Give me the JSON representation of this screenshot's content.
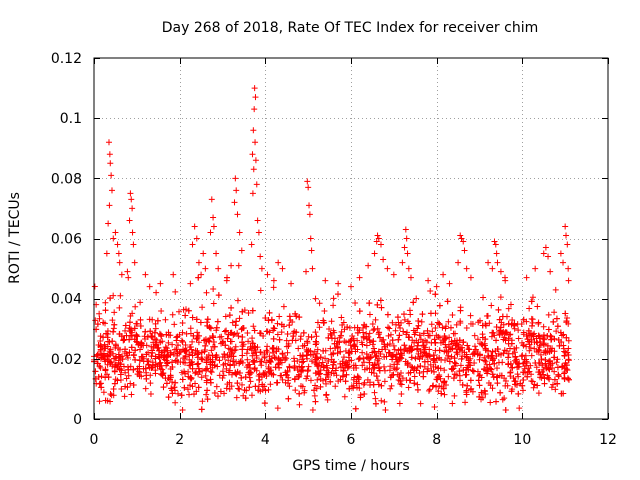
{
  "colors": {
    "marker": "#ff0000",
    "grid": "#a0a0a0",
    "axis": "#000000",
    "background": "#ffffff"
  },
  "chart_data": {
    "type": "scatter",
    "title": "Day 268 of 2018, Rate Of TEC Index for receiver chim",
    "xlabel": "GPS time / hours",
    "ylabel": "ROTI / TECUs",
    "xlim": [
      0,
      12
    ],
    "ylim": [
      0,
      0.12
    ],
    "grid": true,
    "marker": "+",
    "x_ticks": [
      0,
      2,
      4,
      6,
      8,
      10,
      12
    ],
    "y_ticks": [
      0,
      0.02,
      0.04,
      0.06,
      0.08,
      0.1,
      0.12
    ],
    "x_tick_labels": [
      "0",
      "2",
      "4",
      "6",
      "8",
      "10",
      "12"
    ],
    "y_tick_labels": [
      "0",
      "0.02",
      "0.04",
      "0.06",
      "0.08",
      "0.1",
      "0.12"
    ],
    "series": [
      {
        "name": "ROTI",
        "data_range": {
          "x": [
            0,
            11.1
          ],
          "y_min": 0.003,
          "y_max": 0.11
        },
        "bulk": {
          "x_start": 0,
          "x_end": 11.1,
          "y_median": 0.02,
          "y_spread": 0.012
        },
        "spikes": [
          {
            "x": 0.05,
            "y": 0.038
          },
          {
            "x": 0.12,
            "y": 0.035
          },
          {
            "x": 0.35,
            "y": 0.092
          },
          {
            "x": 0.37,
            "y": 0.088
          },
          {
            "x": 0.38,
            "y": 0.085
          },
          {
            "x": 0.4,
            "y": 0.081
          },
          {
            "x": 0.42,
            "y": 0.076
          },
          {
            "x": 0.36,
            "y": 0.071
          },
          {
            "x": 0.33,
            "y": 0.065
          },
          {
            "x": 0.45,
            "y": 0.06
          },
          {
            "x": 0.5,
            "y": 0.062
          },
          {
            "x": 0.55,
            "y": 0.058
          },
          {
            "x": 0.58,
            "y": 0.055
          },
          {
            "x": 0.6,
            "y": 0.052
          },
          {
            "x": 0.3,
            "y": 0.055
          },
          {
            "x": 0.65,
            "y": 0.048
          },
          {
            "x": 0.85,
            "y": 0.075
          },
          {
            "x": 0.87,
            "y": 0.073
          },
          {
            "x": 0.89,
            "y": 0.07
          },
          {
            "x": 0.83,
            "y": 0.066
          },
          {
            "x": 0.9,
            "y": 0.062
          },
          {
            "x": 0.92,
            "y": 0.058
          },
          {
            "x": 0.95,
            "y": 0.052
          },
          {
            "x": 0.8,
            "y": 0.047
          },
          {
            "x": 0.78,
            "y": 0.049
          },
          {
            "x": 1.2,
            "y": 0.048
          },
          {
            "x": 1.3,
            "y": 0.044
          },
          {
            "x": 1.45,
            "y": 0.042
          },
          {
            "x": 1.55,
            "y": 0.045
          },
          {
            "x": 1.85,
            "y": 0.048
          },
          {
            "x": 2.25,
            "y": 0.045
          },
          {
            "x": 2.3,
            "y": 0.058
          },
          {
            "x": 2.35,
            "y": 0.064
          },
          {
            "x": 2.4,
            "y": 0.06
          },
          {
            "x": 2.45,
            "y": 0.052
          },
          {
            "x": 2.5,
            "y": 0.048
          },
          {
            "x": 2.55,
            "y": 0.055
          },
          {
            "x": 2.6,
            "y": 0.05
          },
          {
            "x": 2.75,
            "y": 0.073
          },
          {
            "x": 2.78,
            "y": 0.067
          },
          {
            "x": 2.8,
            "y": 0.064
          },
          {
            "x": 2.72,
            "y": 0.062
          },
          {
            "x": 2.85,
            "y": 0.055
          },
          {
            "x": 2.9,
            "y": 0.05
          },
          {
            "x": 3.1,
            "y": 0.046
          },
          {
            "x": 3.2,
            "y": 0.051
          },
          {
            "x": 3.3,
            "y": 0.08
          },
          {
            "x": 3.32,
            "y": 0.076
          },
          {
            "x": 3.28,
            "y": 0.072
          },
          {
            "x": 3.35,
            "y": 0.068
          },
          {
            "x": 3.4,
            "y": 0.062
          },
          {
            "x": 3.45,
            "y": 0.056
          },
          {
            "x": 3.38,
            "y": 0.051
          },
          {
            "x": 3.75,
            "y": 0.11
          },
          {
            "x": 3.77,
            "y": 0.107
          },
          {
            "x": 3.74,
            "y": 0.103
          },
          {
            "x": 3.72,
            "y": 0.096
          },
          {
            "x": 3.76,
            "y": 0.092
          },
          {
            "x": 3.7,
            "y": 0.088
          },
          {
            "x": 3.78,
            "y": 0.086
          },
          {
            "x": 3.73,
            "y": 0.083
          },
          {
            "x": 3.8,
            "y": 0.078
          },
          {
            "x": 3.71,
            "y": 0.075
          },
          {
            "x": 3.82,
            "y": 0.066
          },
          {
            "x": 3.85,
            "y": 0.062
          },
          {
            "x": 3.68,
            "y": 0.058
          },
          {
            "x": 3.88,
            "y": 0.054
          },
          {
            "x": 3.92,
            "y": 0.05
          },
          {
            "x": 4.05,
            "y": 0.048
          },
          {
            "x": 4.2,
            "y": 0.046
          },
          {
            "x": 4.3,
            "y": 0.052
          },
          {
            "x": 4.4,
            "y": 0.05
          },
          {
            "x": 4.6,
            "y": 0.045
          },
          {
            "x": 4.98,
            "y": 0.079
          },
          {
            "x": 5.0,
            "y": 0.077
          },
          {
            "x": 5.02,
            "y": 0.071
          },
          {
            "x": 5.04,
            "y": 0.068
          },
          {
            "x": 5.06,
            "y": 0.06
          },
          {
            "x": 5.08,
            "y": 0.056
          },
          {
            "x": 5.1,
            "y": 0.05
          },
          {
            "x": 4.95,
            "y": 0.049
          },
          {
            "x": 5.4,
            "y": 0.046
          },
          {
            "x": 5.7,
            "y": 0.045
          },
          {
            "x": 6.0,
            "y": 0.044
          },
          {
            "x": 6.2,
            "y": 0.047
          },
          {
            "x": 6.4,
            "y": 0.051
          },
          {
            "x": 6.6,
            "y": 0.059
          },
          {
            "x": 6.62,
            "y": 0.061
          },
          {
            "x": 6.65,
            "y": 0.06
          },
          {
            "x": 6.7,
            "y": 0.058
          },
          {
            "x": 6.55,
            "y": 0.055
          },
          {
            "x": 6.75,
            "y": 0.053
          },
          {
            "x": 6.85,
            "y": 0.05
          },
          {
            "x": 7.0,
            "y": 0.048
          },
          {
            "x": 7.25,
            "y": 0.057
          },
          {
            "x": 7.28,
            "y": 0.063
          },
          {
            "x": 7.3,
            "y": 0.06
          },
          {
            "x": 7.32,
            "y": 0.055
          },
          {
            "x": 7.2,
            "y": 0.052
          },
          {
            "x": 7.35,
            "y": 0.05
          },
          {
            "x": 7.4,
            "y": 0.047
          },
          {
            "x": 7.8,
            "y": 0.046
          },
          {
            "x": 8.0,
            "y": 0.044
          },
          {
            "x": 8.15,
            "y": 0.048
          },
          {
            "x": 8.3,
            "y": 0.045
          },
          {
            "x": 8.55,
            "y": 0.061
          },
          {
            "x": 8.58,
            "y": 0.06
          },
          {
            "x": 8.62,
            "y": 0.059
          },
          {
            "x": 8.65,
            "y": 0.056
          },
          {
            "x": 8.5,
            "y": 0.052
          },
          {
            "x": 8.7,
            "y": 0.05
          },
          {
            "x": 8.8,
            "y": 0.047
          },
          {
            "x": 9.2,
            "y": 0.052
          },
          {
            "x": 9.35,
            "y": 0.059
          },
          {
            "x": 9.38,
            "y": 0.058
          },
          {
            "x": 9.4,
            "y": 0.055
          },
          {
            "x": 9.42,
            "y": 0.052
          },
          {
            "x": 9.3,
            "y": 0.05
          },
          {
            "x": 9.5,
            "y": 0.049
          },
          {
            "x": 9.6,
            "y": 0.046
          },
          {
            "x": 10.1,
            "y": 0.047
          },
          {
            "x": 10.3,
            "y": 0.05
          },
          {
            "x": 10.5,
            "y": 0.055
          },
          {
            "x": 10.55,
            "y": 0.057
          },
          {
            "x": 10.6,
            "y": 0.054
          },
          {
            "x": 10.65,
            "y": 0.049
          },
          {
            "x": 10.9,
            "y": 0.055
          },
          {
            "x": 11.0,
            "y": 0.064
          },
          {
            "x": 11.02,
            "y": 0.061
          },
          {
            "x": 11.05,
            "y": 0.058
          },
          {
            "x": 10.95,
            "y": 0.052
          },
          {
            "x": 11.07,
            "y": 0.05
          },
          {
            "x": 11.08,
            "y": 0.046
          }
        ]
      }
    ]
  }
}
